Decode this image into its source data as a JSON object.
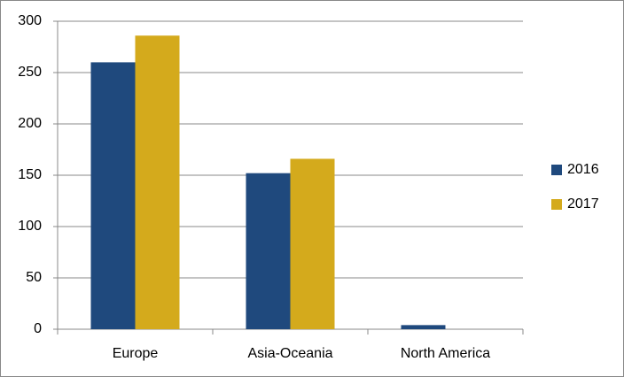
{
  "chart_data": {
    "type": "bar",
    "categories": [
      "Europe",
      "Asia-Oceania",
      "North America"
    ],
    "series": [
      {
        "name": "2016",
        "color": "#1f497d",
        "values": [
          260,
          152,
          4
        ]
      },
      {
        "name": "2017",
        "color": "#d4aa1c",
        "values": [
          286,
          166,
          0
        ]
      }
    ],
    "ylim": [
      0,
      300
    ],
    "yticks": [
      0,
      50,
      100,
      150,
      200,
      250,
      300
    ],
    "grid": true,
    "legend": "right"
  }
}
